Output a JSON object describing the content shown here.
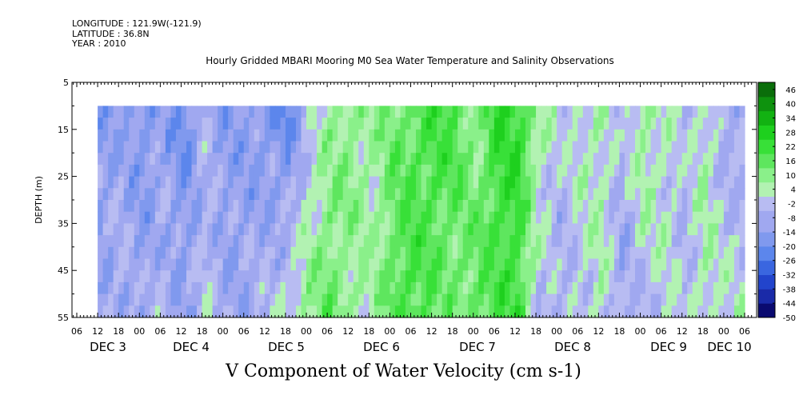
{
  "header": {
    "longitude": "LONGITUDE : 121.9W(-121.9)",
    "latitude": "LATITUDE : 36.8N",
    "year": "YEAR : 2010",
    "title": "Hourly Gridded MBARI Mooring M0 Sea Water Temperature and Salinity Observations"
  },
  "chart_data": {
    "type": "heatmap",
    "title": "Hourly Gridded MBARI Mooring M0 Sea Water Temperature and Salinity Observations",
    "subtitle": "V Component of Water Velocity (cm s-1)",
    "ylabel": "DEPTH (m)",
    "xlabel": "",
    "y_axis": {
      "ylim": [
        5,
        55
      ],
      "inverted": true,
      "ticks": [
        5,
        15,
        25,
        35,
        45,
        55
      ]
    },
    "x_axis": {
      "hour_ticks": [
        "06",
        "12",
        "18",
        "00",
        "06",
        "12",
        "18",
        "00",
        "06",
        "12",
        "18",
        "00",
        "06",
        "12",
        "18",
        "00",
        "06",
        "12",
        "18",
        "00",
        "06",
        "12",
        "18",
        "00",
        "06",
        "12",
        "18",
        "00",
        "06",
        "12",
        "18",
        "00",
        "06"
      ],
      "day_labels": [
        "DEC 3",
        "DEC 4",
        "DEC 5",
        "DEC 6",
        "DEC 7",
        "DEC 8",
        "DEC 9",
        "DEC 10"
      ]
    },
    "data_depth_range": [
      10,
      55
    ],
    "colorbar": {
      "range": [
        -50,
        49
      ],
      "labels": [
        "46",
        "40",
        "34",
        "28",
        "22",
        "16",
        "10",
        "4",
        "-2",
        "-8",
        "-14",
        "-20",
        "-26",
        "-32",
        "-38",
        "-44",
        "-50"
      ]
    },
    "v_profile_hours_from_dec3_12": [
      0,
      6,
      12,
      18,
      24,
      30,
      36,
      42,
      48,
      54,
      60,
      66,
      72,
      78,
      84,
      90,
      96,
      102,
      108,
      114,
      120,
      126,
      132,
      138,
      144,
      150,
      156,
      162,
      168,
      174,
      180
    ],
    "v_surface": [
      -14,
      -10,
      -16,
      -12,
      -18,
      -8,
      -14,
      -12,
      -16,
      -20,
      -6,
      6,
      10,
      4,
      12,
      16,
      20,
      18,
      8,
      22,
      24,
      6,
      -2,
      2,
      4,
      -6,
      8,
      2,
      -4,
      4,
      -10
    ],
    "v_bottom": [
      -8,
      -6,
      -10,
      -4,
      -12,
      -2,
      -8,
      -10,
      -4,
      2,
      10,
      14,
      6,
      4,
      16,
      20,
      14,
      10,
      16,
      18,
      20,
      -4,
      -8,
      -2,
      2,
      -10,
      -6,
      0,
      -4,
      4,
      2
    ]
  },
  "colors": {
    "negative_scale": [
      "#0a0a70",
      "#1a2aa8",
      "#2244cc",
      "#3a66e0",
      "#5c86ec",
      "#8099ee",
      "#a0a8f0",
      "#b8bcf2"
    ],
    "positive_scale": [
      "#b2f2b2",
      "#8af08a",
      "#5ee65e",
      "#38e038",
      "#1ed01e",
      "#12b212",
      "#0e920e",
      "#0a6e0a"
    ]
  }
}
